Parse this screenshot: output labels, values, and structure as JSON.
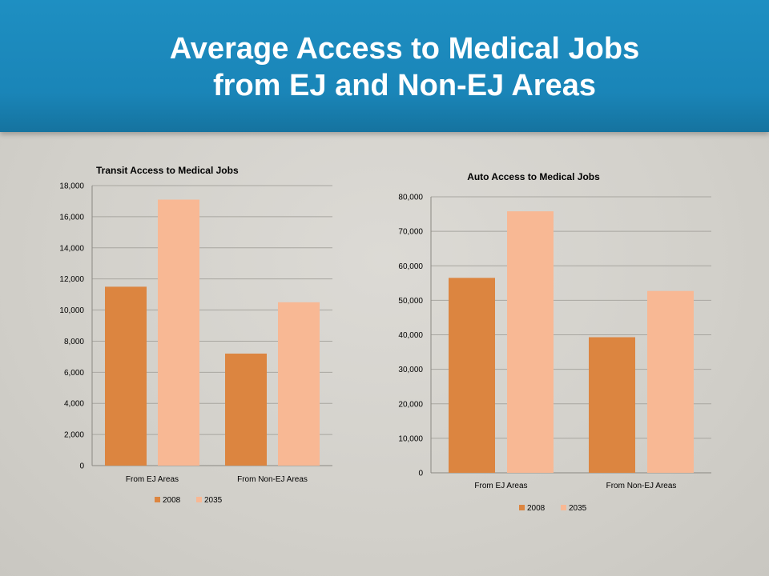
{
  "slide": {
    "title_line1": "Average Access to Medical Jobs",
    "title_line2": "from EJ and Non-EJ Areas",
    "colors": {
      "header": "#1a87ba",
      "background": "#d6d4ce",
      "series_2008": "#dc8540",
      "series_2035": "#f8b894"
    }
  },
  "chart_data": [
    {
      "type": "bar",
      "title": "Transit Access to Medical Jobs",
      "categories": [
        "From EJ Areas",
        "From Non-EJ Areas"
      ],
      "series": [
        {
          "name": "2008",
          "values": [
            11500,
            7200
          ],
          "color": "#dc8540"
        },
        {
          "name": "2035",
          "values": [
            17100,
            10500
          ],
          "color": "#f8b894"
        }
      ],
      "ylim": [
        0,
        18000
      ],
      "yticks": [
        0,
        2000,
        4000,
        6000,
        8000,
        10000,
        12000,
        14000,
        16000,
        18000
      ],
      "ytick_labels": [
        "0",
        "2,000",
        "4,000",
        "6,000",
        "8,000",
        "10,000",
        "12,000",
        "14,000",
        "16,000",
        "18,000"
      ],
      "grid": true,
      "legend": "bottom"
    },
    {
      "type": "bar",
      "title": "Auto Access to Medical Jobs",
      "categories": [
        "From EJ Areas",
        "From Non-EJ Areas"
      ],
      "series": [
        {
          "name": "2008",
          "values": [
            56500,
            39300
          ],
          "color": "#dc8540"
        },
        {
          "name": "2035",
          "values": [
            75800,
            52700
          ],
          "color": "#f8b894"
        }
      ],
      "ylim": [
        0,
        80000
      ],
      "yticks": [
        0,
        10000,
        20000,
        30000,
        40000,
        50000,
        60000,
        70000,
        80000
      ],
      "ytick_labels": [
        "0",
        "10,000",
        "20,000",
        "30,000",
        "40,000",
        "50,000",
        "60,000",
        "70,000",
        "80,000"
      ],
      "grid": true,
      "legend": "bottom"
    }
  ]
}
